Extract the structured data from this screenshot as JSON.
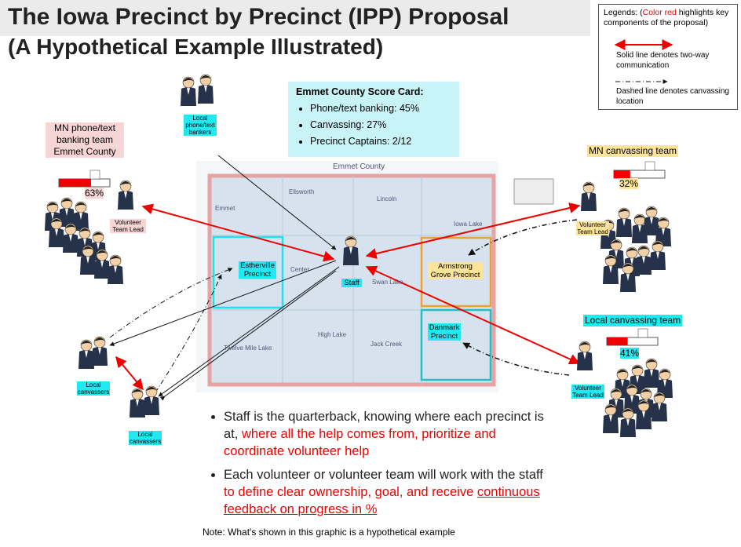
{
  "header": {
    "title": "The Iowa Precinct by Precinct (IPP) Proposal",
    "subtitle": "(A Hypothetical Example Illustrated)"
  },
  "legend": {
    "prefix": "Legends: (",
    "highlight": "Color red",
    "suffix": "highlights key components of the proposal)",
    "items": [
      "Solid line denotes two-way communication",
      "Dashed line denotes canvassing location"
    ]
  },
  "scorecard": {
    "title": "Emmet County Score Card:",
    "items": [
      "Phone/text banking: 45%",
      "Canvassing: 27%",
      "Precinct Captains: 2/12"
    ]
  },
  "teams": [
    {
      "name": "MN phone/text banking team Emmet County",
      "percent": 63,
      "label": "63%"
    },
    {
      "name": "MN canvassing team",
      "percent": 32,
      "label": "32%"
    },
    {
      "name": "Local canvassing team",
      "percent": 41,
      "label": "41%"
    }
  ],
  "people": [
    "Local phone/text bankers",
    "Volunteer Team Lead",
    "Volunteer Team Lead",
    "Volunteer Team Lead",
    "Local canvassers",
    "Local canvassers"
  ],
  "map": {
    "title": "Emmet County",
    "towns": [
      "Ellsworth",
      "Lincoln",
      "Emmet",
      "Iowa Lake",
      "Center",
      "Swan Lake",
      "High Lake",
      "Jack Creek",
      "Twelve Mile Lake"
    ],
    "precincts": [
      "Estherville Precinct",
      "Armstrong Grove Precinct",
      "Danmark Precinct"
    ],
    "staff": "Staff"
  },
  "bullets": [
    [
      "Staff is the quarterback, knowing where each precinct is at, ",
      "where all the help comes from, prioritize and coordinate volunteer help"
    ],
    [
      "Each volunteer or volunteer team will work with the staff ",
      "to define clear ownership, goal, and receive ",
      "continuous feedback on progress in %"
    ]
  ],
  "note": "Note: What's shown in this graphic is a hypothetical example"
}
